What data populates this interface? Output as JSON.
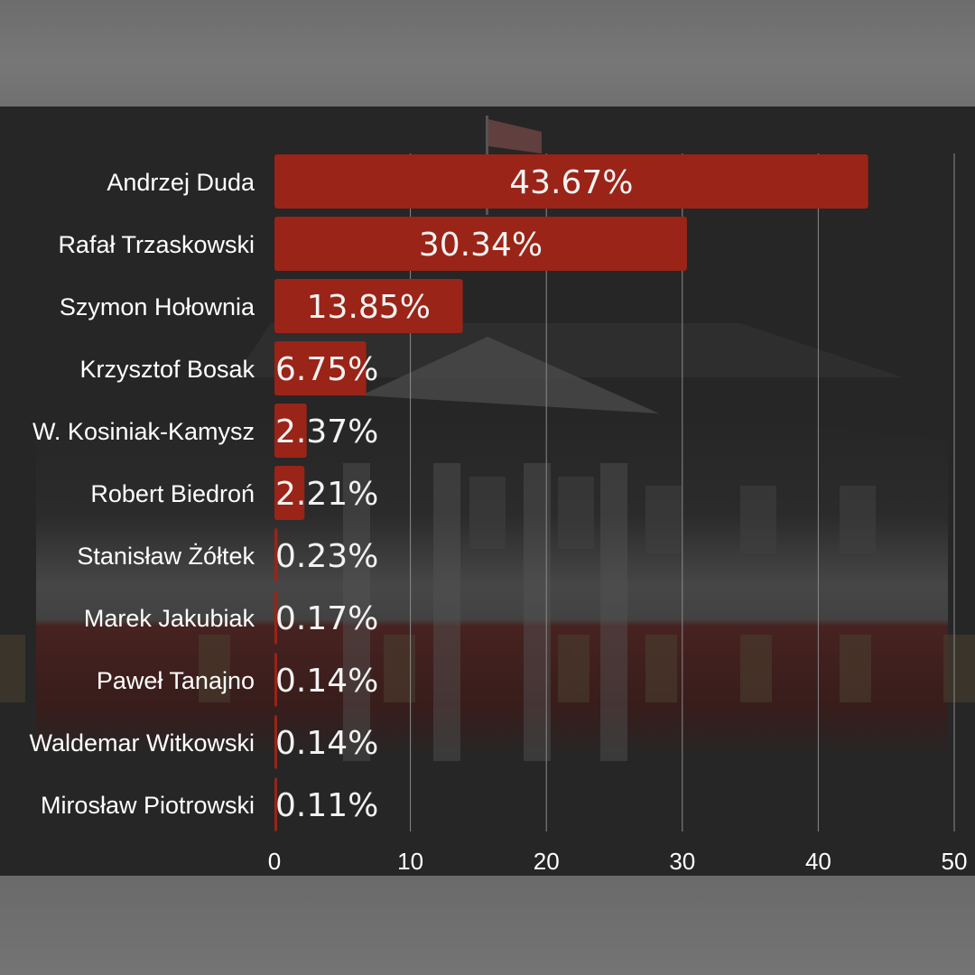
{
  "colors": {
    "bar": "#9a2417",
    "grid": "#8a8a8a",
    "text": "#ffffff"
  },
  "chart_data": {
    "type": "bar",
    "orientation": "horizontal",
    "categories": [
      "Andrzej Duda",
      "Rafał Trzaskowski",
      "Szymon Hołownia",
      "Krzysztof Bosak",
      "W. Kosiniak-Kamysz",
      "Robert Biedroń",
      "Stanisław Żółtek",
      "Marek Jakubiak",
      "Paweł Tanajno",
      "Waldemar Witkowski",
      "Mirosław Piotrowski"
    ],
    "values": [
      43.67,
      30.34,
      13.85,
      6.75,
      2.37,
      2.21,
      0.23,
      0.17,
      0.14,
      0.14,
      0.11
    ],
    "data_labels": [
      "43.67%",
      "30.34%",
      "13.85%",
      "6.75%",
      "2.37%",
      "2.21%",
      "0.23%",
      "0.17%",
      "0.14%",
      "0.14%",
      "0.11%"
    ],
    "x_ticks": [
      "0",
      "10",
      "20",
      "30",
      "40",
      "50"
    ],
    "xlim": [
      0,
      50
    ],
    "grid": true,
    "legend": "none"
  }
}
